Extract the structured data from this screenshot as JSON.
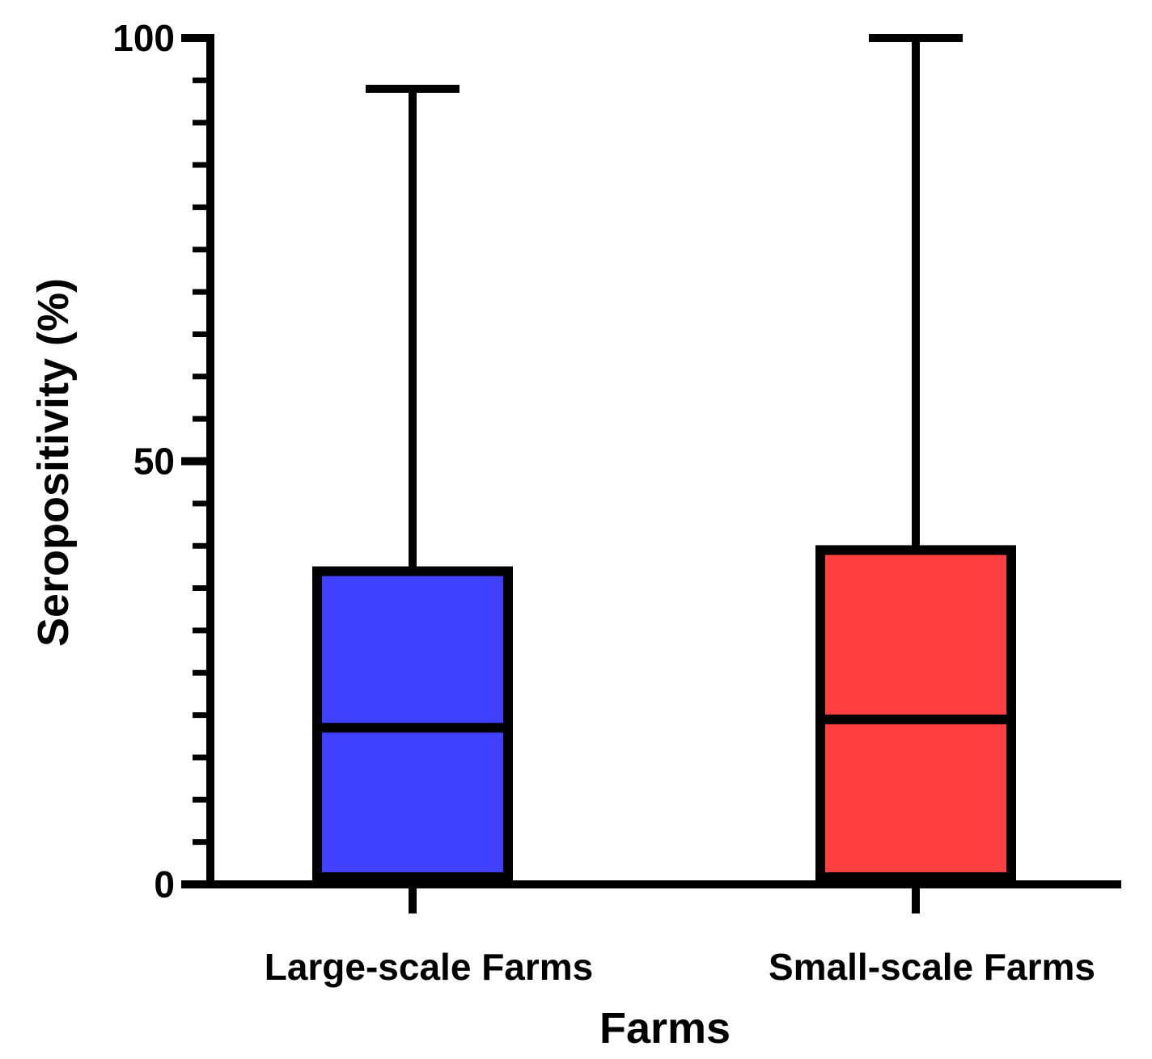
{
  "chart_data": {
    "type": "box",
    "title": "",
    "xlabel": "Farms",
    "ylabel": "Seropositivity (%)",
    "ylim": [
      0,
      100
    ],
    "y_major_ticks": [
      0,
      50,
      100
    ],
    "y_major_tick_labels": [
      "0",
      "50",
      "100"
    ],
    "y_minor_step": 5,
    "grid": false,
    "categories": [
      "Large-scale Farms",
      "Small-scale Farms"
    ],
    "boxes": [
      {
        "category": "Large-scale Farms",
        "min": 0,
        "q1": 0,
        "median": 18.5,
        "q3": 37,
        "max": 94,
        "color": "#4040ff"
      },
      {
        "category": "Small-scale Farms",
        "min": 0,
        "q1": 0,
        "median": 19.5,
        "q3": 39.5,
        "max": 100,
        "color": "#ff4040"
      }
    ]
  }
}
